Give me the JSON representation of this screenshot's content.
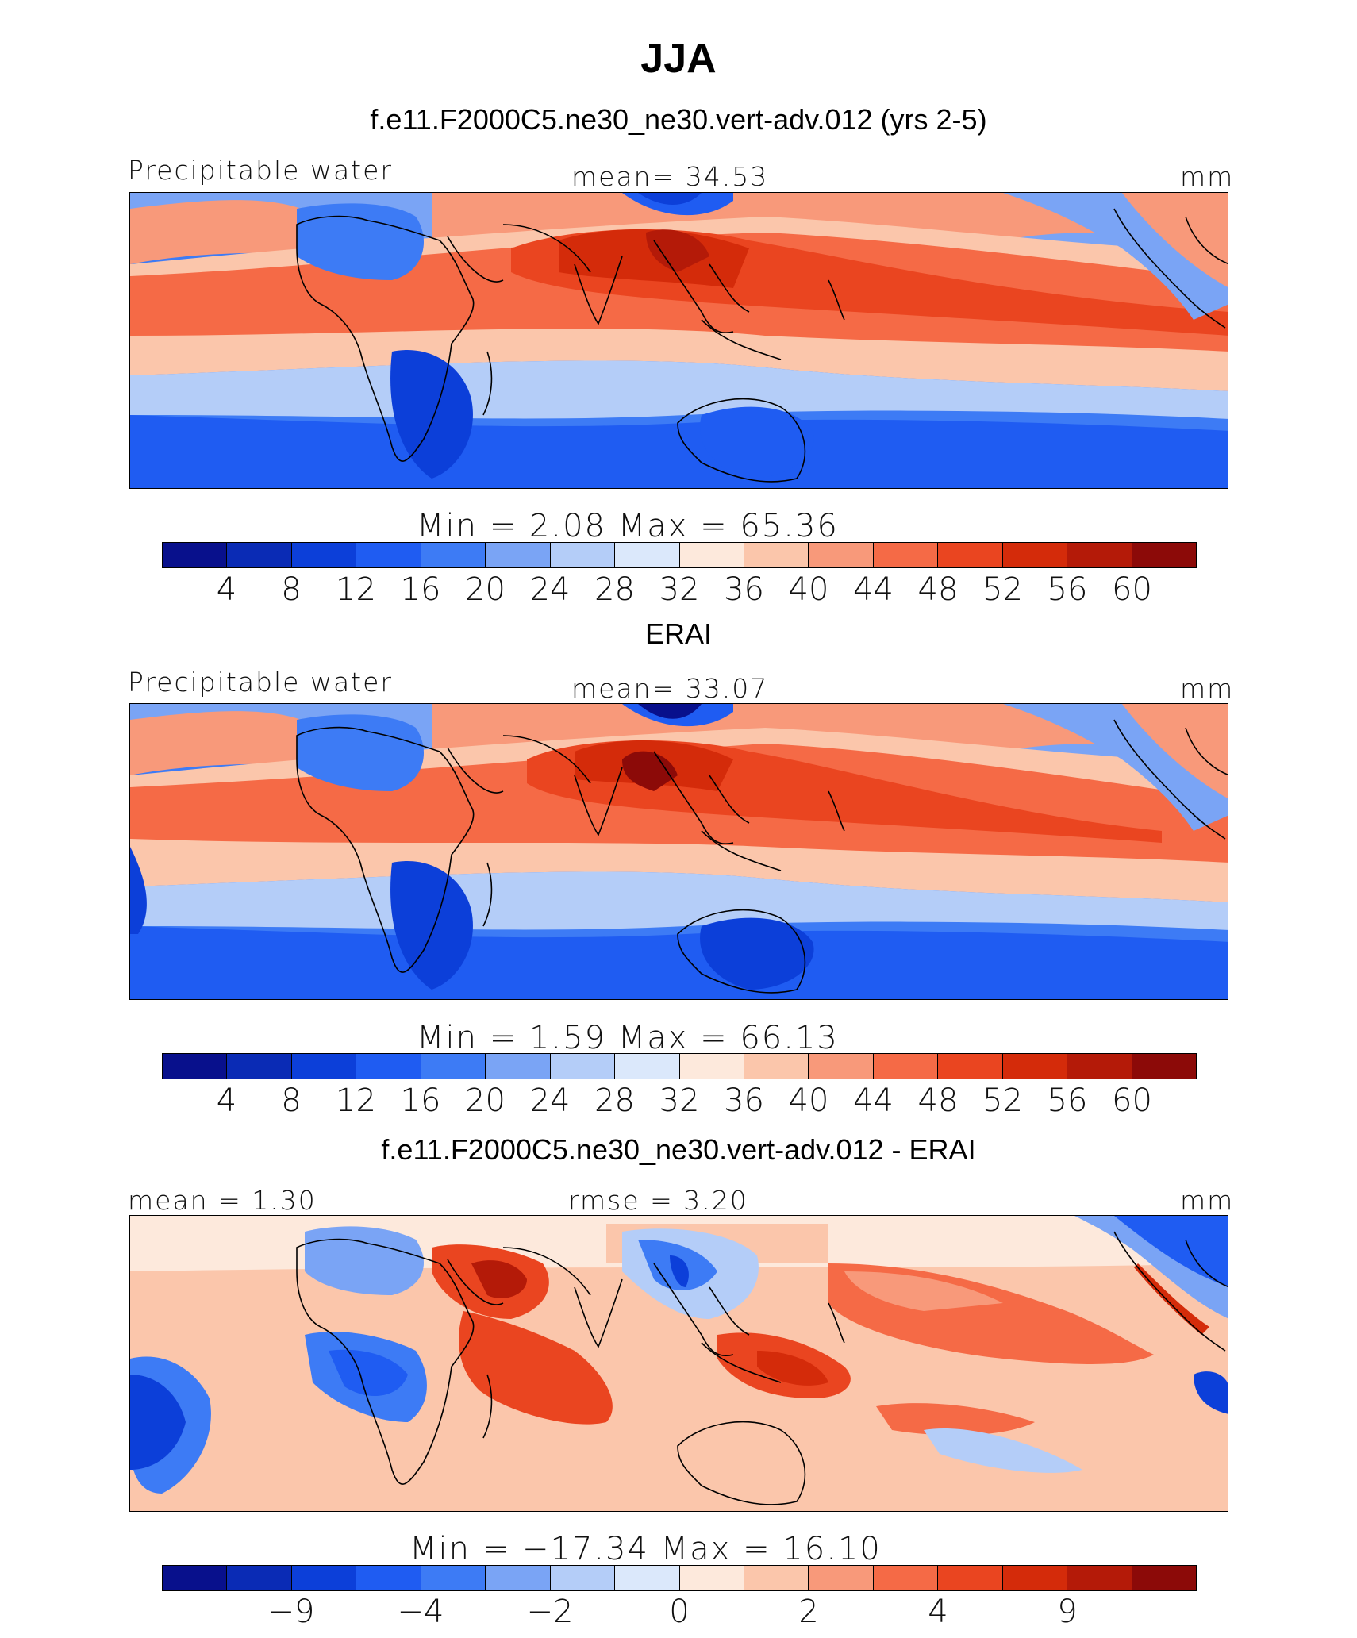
{
  "title": "JJA",
  "palette": [
    "#08108c",
    "#0a2bb5",
    "#0c3fd9",
    "#1f5cf2",
    "#3d7bf5",
    "#7aa4f5",
    "#b4cdf8",
    "#dbe8fb",
    "#fde9dc",
    "#fbc6ab",
    "#f8997a",
    "#f56a46",
    "#ea4520",
    "#d42b0a",
    "#b41a08",
    "#8c0a08"
  ],
  "panels": [
    {
      "subtitle": "f.e11.F2000C5.ne30_ne30.vert-adv.012 (yrs 2-5)",
      "left_label": "Precipitable water",
      "center_label": "mean=   34.53",
      "units": "mm",
      "minmax": "Min  =     2.08  Max  =    65.36",
      "ticks": [
        "4",
        "8",
        "12",
        "16",
        "20",
        "24",
        "28",
        "32",
        "36",
        "40",
        "44",
        "48",
        "52",
        "56",
        "60"
      ]
    },
    {
      "subtitle": "ERAI",
      "left_label": "Precipitable water",
      "center_label": "mean=   33.07",
      "units": "mm",
      "minmax": "Min  =     1.59  Max  =    66.13",
      "ticks": [
        "4",
        "8",
        "12",
        "16",
        "20",
        "24",
        "28",
        "32",
        "36",
        "40",
        "44",
        "48",
        "52",
        "56",
        "60"
      ]
    },
    {
      "subtitle": "f.e11.F2000C5.ne30_ne30.vert-adv.012 - ERAI",
      "left_label": "mean  =    1.30",
      "center_label": "rmse  =     3.20",
      "units": "mm",
      "minmax": "Min  = −17.34  Max  =    16.10",
      "ticks": [
        "−9",
        "−4",
        "−2",
        "0",
        "2",
        "4",
        "9"
      ]
    }
  ]
}
